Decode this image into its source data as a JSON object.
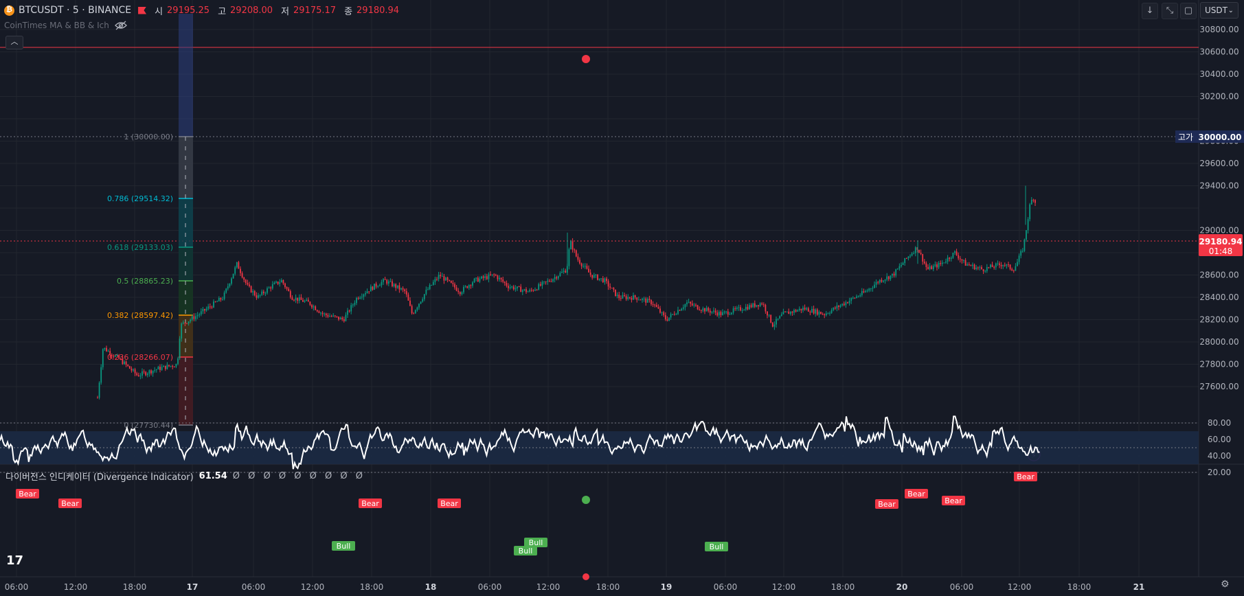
{
  "header": {
    "symbol_title": "BTCUSDT · 5 · BINANCE",
    "ohlc": [
      {
        "label": "시",
        "value": "29195.25"
      },
      {
        "label": "고",
        "value": "29208.00"
      },
      {
        "label": "저",
        "value": "29175.17"
      },
      {
        "label": "종",
        "value": "29180.94"
      }
    ],
    "indicator_label": "CoinTimes MA & BB & Ich"
  },
  "toolbar": {
    "currency": "USDT",
    "icons": [
      "arrow-down-icon",
      "compress-icon",
      "maximize-icon"
    ]
  },
  "price_axis": {
    "ticks": [
      "30800.00",
      "30600.00",
      "30400.00",
      "30200.00",
      "29800.00",
      "29600.00",
      "29400.00",
      "29000.00",
      "28800.00",
      "28600.00",
      "28400.00",
      "28200.00",
      "28000.00",
      "27800.00",
      "27600.00"
    ],
    "high_label": "고가",
    "high_value": "30000.00",
    "last_price": "29180.94",
    "countdown": "01:48"
  },
  "fib": {
    "levels": [
      {
        "label": "1 (30000.00)",
        "color": "#787b86"
      },
      {
        "label": "0.786 (29514.32)",
        "color": "#00bcd4"
      },
      {
        "label": "0.618 (29133.03)",
        "color": "#089981"
      },
      {
        "label": "0.5 (28865.23)",
        "color": "#4caf50"
      },
      {
        "label": "0.382 (28597.42)",
        "color": "#ff9800"
      },
      {
        "label": "0.236 (28266.07)",
        "color": "#f23645"
      },
      {
        "label": "0 (27730.44)",
        "color": "#787b86"
      }
    ]
  },
  "oscillator": {
    "title": "다이버전스 인디케이터 (Divergence Indicator)",
    "value": "61.54",
    "placeholders": "Ø Ø Ø Ø Ø Ø Ø Ø Ø",
    "ticks": [
      "80.00",
      "60.00",
      "40.00",
      "20.00"
    ],
    "bear_label": "Bear",
    "bull_label": "Bull"
  },
  "time_axis": {
    "ticks": [
      "06:00",
      "12:00",
      "18:00",
      "17",
      "06:00",
      "12:00",
      "18:00",
      "18",
      "06:00",
      "12:00",
      "18:00",
      "19",
      "06:00",
      "12:00",
      "18:00",
      "20",
      "06:00",
      "12:00",
      "18:00",
      "21"
    ]
  },
  "logo_text": "17",
  "colors": {
    "background": "#161a25",
    "up": "#089981",
    "down": "#f23645",
    "alert_line": "#f23645",
    "price_label_bg": "#f23645",
    "high_label_bg": "#1e2a55",
    "osc_band": "#1b2a44"
  }
}
